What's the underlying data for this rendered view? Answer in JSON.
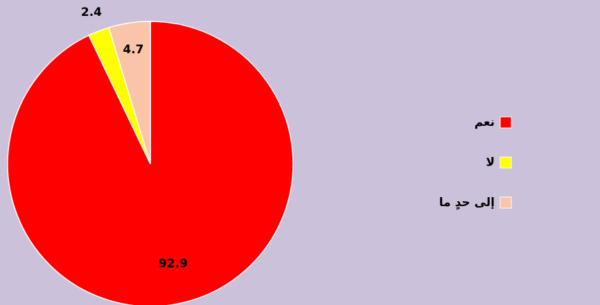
{
  "chart_data": {
    "type": "pie",
    "categories": [
      "نعم",
      "لا",
      "إلى حدٍ ما"
    ],
    "values": [
      92.9,
      2.4,
      4.7
    ],
    "colors": [
      "#ff0000",
      "#ffff00",
      "#fac4a8"
    ],
    "legend": "right"
  }
}
